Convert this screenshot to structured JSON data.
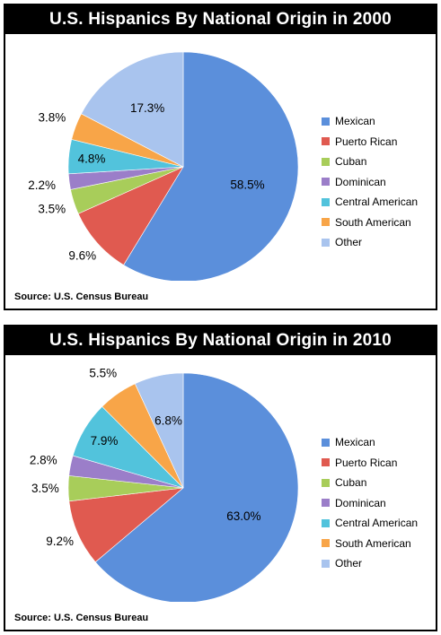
{
  "colors": {
    "Mexican": "#5b8fdb",
    "Puerto Rican": "#e05a50",
    "Cuban": "#a8cd5a",
    "Dominican": "#9b7ec9",
    "Central American": "#52c3dc",
    "South American": "#f8a548",
    "Other": "#a9c4ee"
  },
  "chart_data": [
    {
      "type": "pie",
      "title": "U.S. Hispanics By National Origin in 2000",
      "source": "Source: U.S. Census Bureau",
      "categories": [
        "Mexican",
        "Puerto Rican",
        "Cuban",
        "Dominican",
        "Central American",
        "South American",
        "Other"
      ],
      "values": [
        58.5,
        9.6,
        3.5,
        2.2,
        4.8,
        3.8,
        17.3
      ],
      "labels": [
        "58.5%",
        "9.6%",
        "3.5%",
        "2.2%",
        "4.8%",
        "3.8%",
        "17.3%"
      ],
      "legend_position": "right"
    },
    {
      "type": "pie",
      "title": "U.S. Hispanics By National Origin in 2010",
      "source": "Source: U.S. Census Bureau",
      "categories": [
        "Mexican",
        "Puerto Rican",
        "Cuban",
        "Dominican",
        "Central American",
        "South American",
        "Other"
      ],
      "values": [
        63.0,
        9.2,
        3.5,
        2.8,
        7.9,
        5.5,
        6.8
      ],
      "labels": [
        "63.0%",
        "9.2%",
        "3.5%",
        "2.8%",
        "7.9%",
        "5.5%",
        "6.8%"
      ],
      "legend_position": "right"
    }
  ]
}
